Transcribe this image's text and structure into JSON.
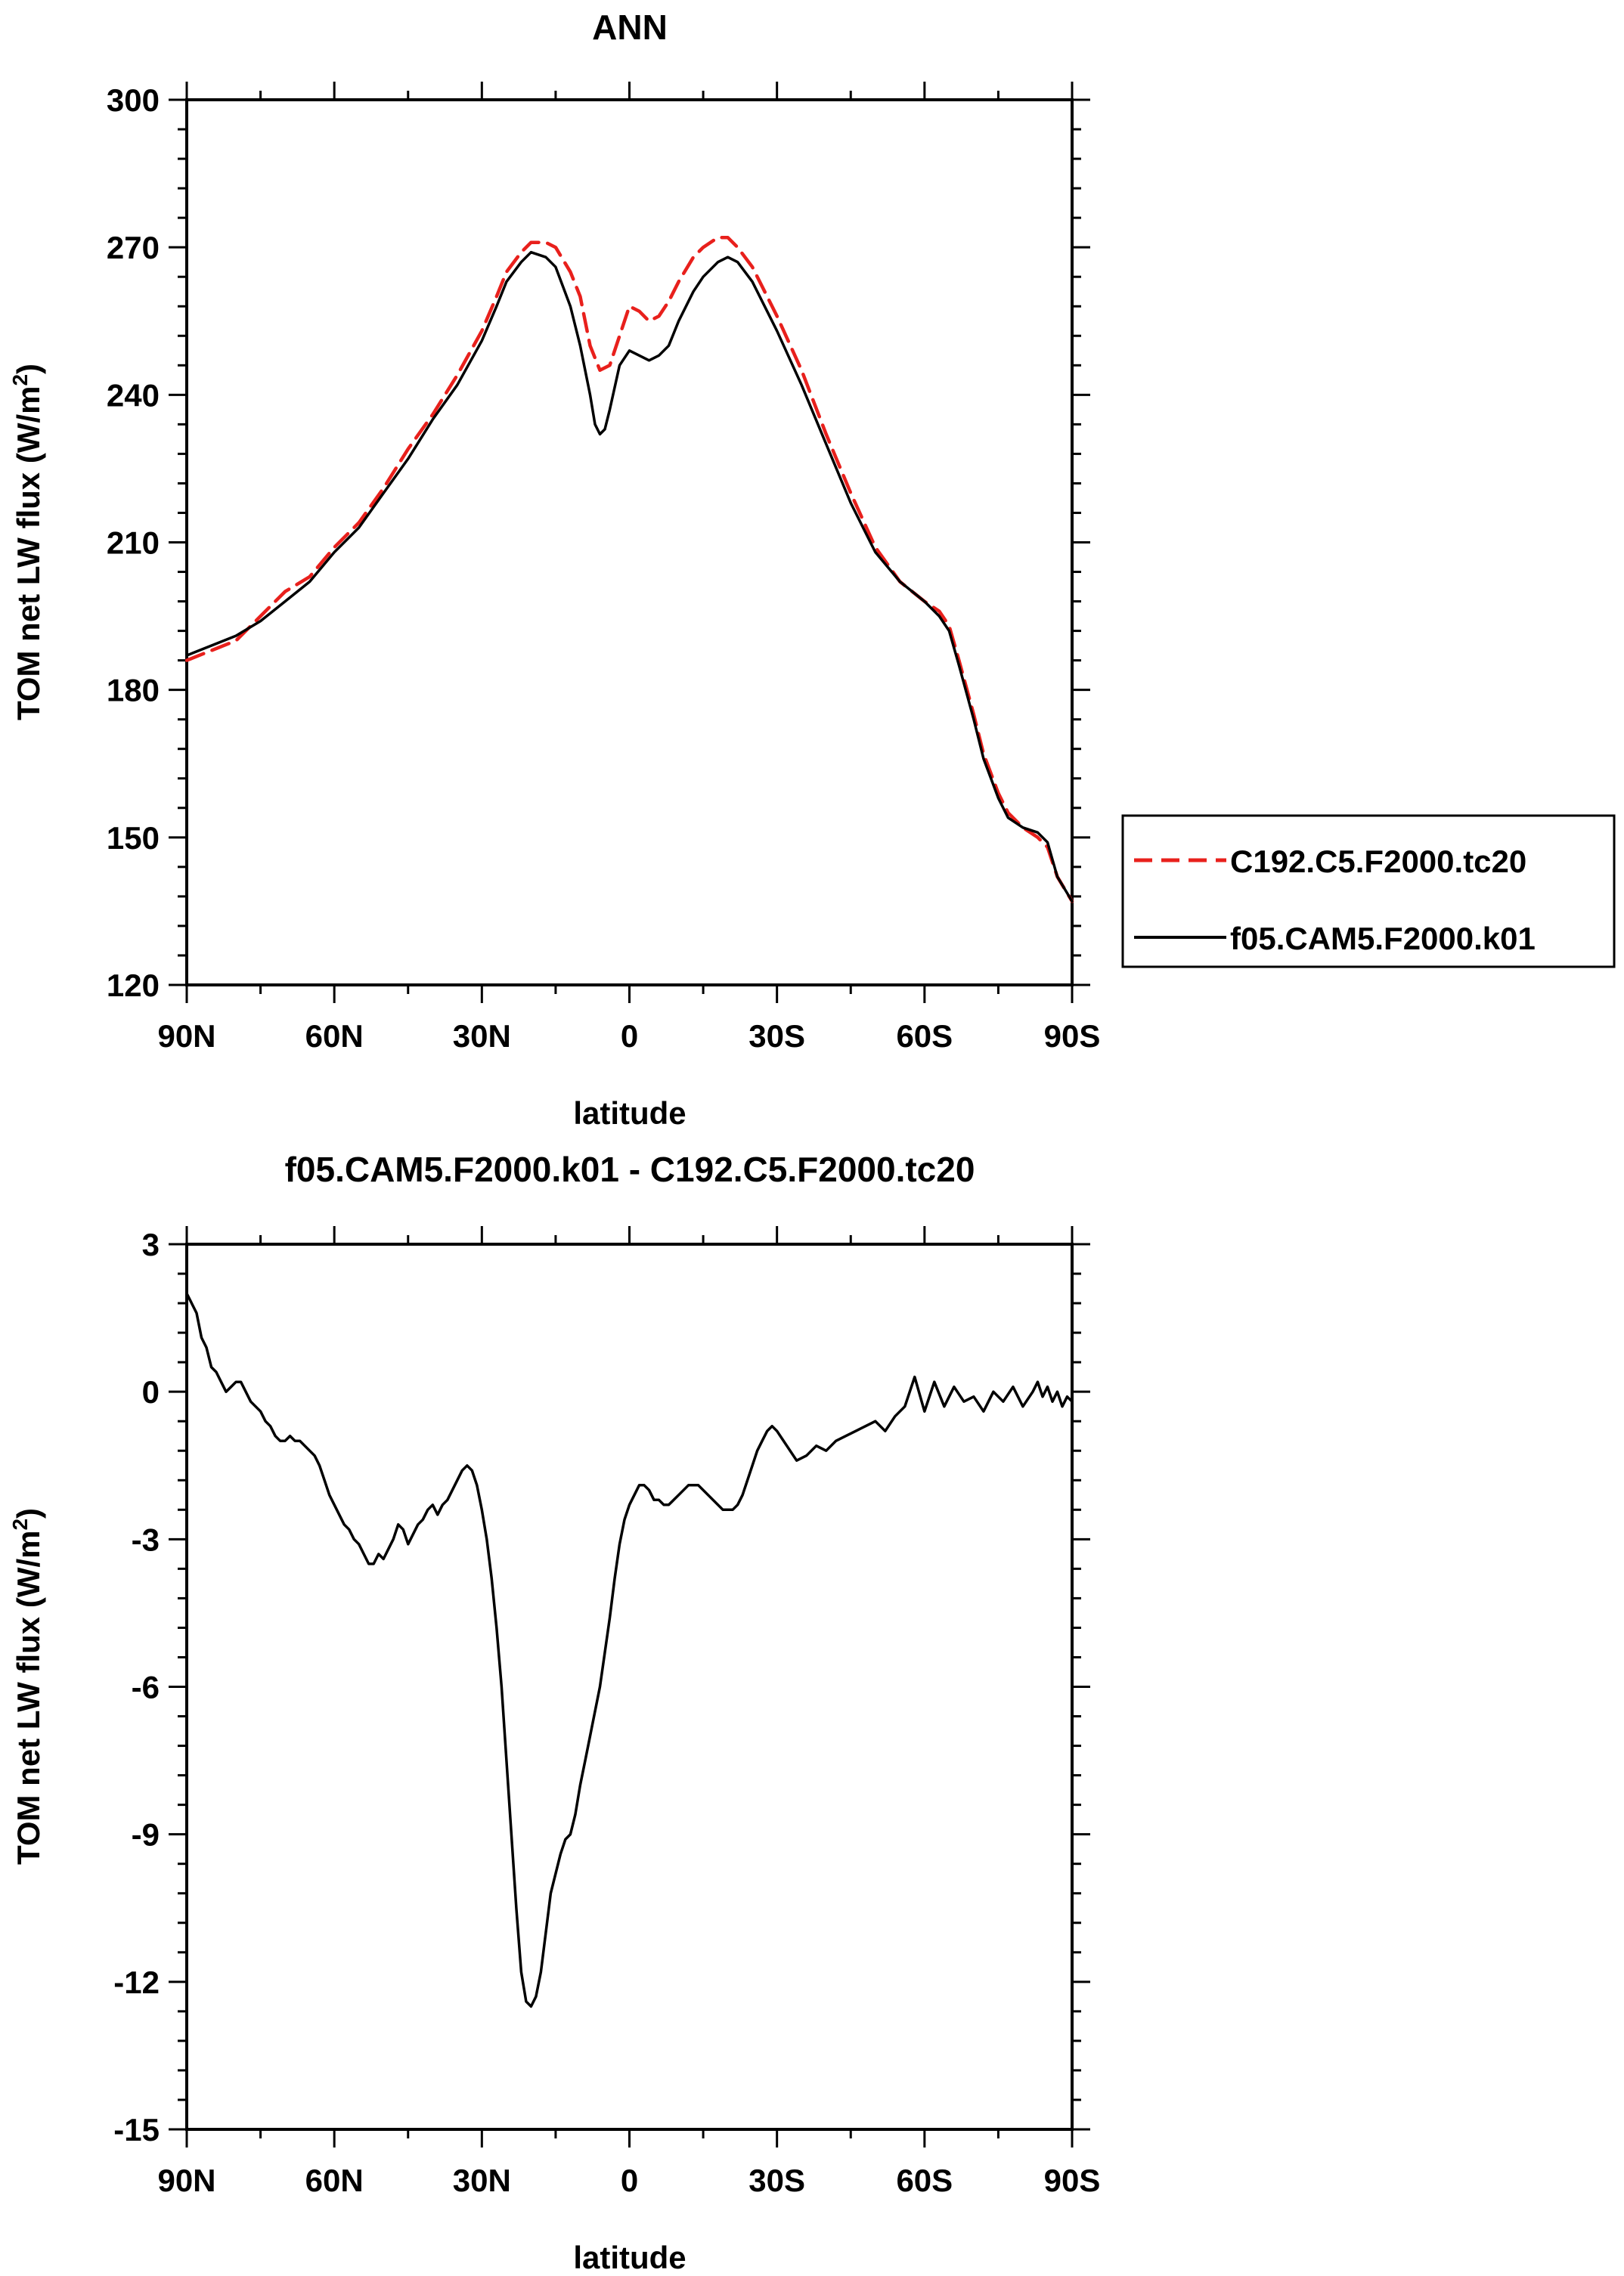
{
  "chart_data": [
    {
      "type": "line",
      "title": "ANN",
      "xlabel": "latitude",
      "ylabel": "TOM net LW flux (W/m",
      "ylabel_sup": "2",
      "ylabel_tail": ")",
      "xlim": [
        90,
        -90
      ],
      "ylim": [
        120,
        300
      ],
      "xticks": [
        90,
        60,
        30,
        0,
        -30,
        -60,
        -90
      ],
      "xtick_labels": [
        "90N",
        "60N",
        "30N",
        "0",
        "30S",
        "60S",
        "90S"
      ],
      "yticks": [
        120,
        150,
        180,
        210,
        240,
        270,
        300
      ],
      "ytick_labels": [
        "120",
        "150",
        "180",
        "210",
        "240",
        "270",
        "300"
      ],
      "grid": false,
      "legend": "right",
      "series": [
        {
          "name": "C192.C5.F2000.tc20",
          "color": "#e8201c",
          "dash": "dashed",
          "x": [
            90,
            85,
            80,
            75,
            70,
            65,
            60,
            55,
            50,
            45,
            40,
            35,
            30,
            27,
            25,
            22,
            20,
            17,
            15,
            12,
            10,
            8,
            6,
            4,
            2,
            0,
            -2,
            -4,
            -6,
            -8,
            -10,
            -13,
            -15,
            -18,
            -20,
            -22,
            -25,
            -30,
            -35,
            -40,
            -45,
            -50,
            -55,
            -60,
            -63,
            -65,
            -67,
            -70,
            -72,
            -75,
            -77,
            -80,
            -83,
            -85,
            -87,
            -90
          ],
          "values": [
            186,
            188,
            190,
            195,
            200,
            203,
            209,
            214,
            221,
            229,
            236,
            244,
            253,
            260,
            265,
            269,
            271,
            271,
            270,
            265,
            260,
            250,
            245,
            246,
            252,
            258,
            257,
            255,
            256,
            259,
            263,
            268,
            270,
            272,
            272,
            270,
            266,
            256,
            245,
            232,
            220,
            209,
            202,
            198,
            196,
            193,
            186,
            175,
            167,
            159,
            155,
            152,
            150,
            148,
            142,
            137
          ]
        },
        {
          "name": "f05.CAM5.F2000.k01",
          "color": "#000000",
          "dash": "solid",
          "x": [
            90,
            85,
            80,
            75,
            70,
            65,
            60,
            55,
            50,
            45,
            40,
            35,
            30,
            27,
            25,
            22,
            20,
            17,
            15,
            12,
            10,
            8,
            7,
            6,
            5,
            4,
            2,
            0,
            -2,
            -4,
            -6,
            -8,
            -10,
            -13,
            -15,
            -18,
            -20,
            -22,
            -25,
            -30,
            -35,
            -40,
            -45,
            -50,
            -55,
            -60,
            -63,
            -65,
            -67,
            -70,
            -72,
            -75,
            -77,
            -80,
            -83,
            -85,
            -87,
            -90
          ],
          "values": [
            187,
            189,
            191,
            194,
            198,
            202,
            208,
            213,
            220,
            227,
            235,
            242,
            251,
            258,
            263,
            267,
            269,
            268,
            266,
            258,
            250,
            240,
            234,
            232,
            233,
            237,
            246,
            249,
            248,
            247,
            248,
            250,
            255,
            261,
            264,
            267,
            268,
            267,
            263,
            253,
            242,
            230,
            218,
            208,
            202,
            198,
            195,
            192,
            185,
            174,
            166,
            158,
            154,
            152,
            151,
            149,
            142,
            137
          ]
        }
      ]
    },
    {
      "type": "line",
      "title": "f05.CAM5.F2000.k01 - C192.C5.F2000.tc20",
      "xlabel": "latitude",
      "ylabel": "TOM net LW flux (W/m",
      "ylabel_sup": "2",
      "ylabel_tail": ")",
      "xlim": [
        90,
        -90
      ],
      "ylim": [
        -15,
        3
      ],
      "xticks": [
        90,
        60,
        30,
        0,
        -30,
        -60,
        -90
      ],
      "xtick_labels": [
        "90N",
        "60N",
        "30N",
        "0",
        "30S",
        "60S",
        "90S"
      ],
      "yticks": [
        -15,
        -12,
        -9,
        -6,
        -3,
        0,
        3
      ],
      "ytick_labels": [
        "-15",
        "-12",
        "-9",
        "-6",
        "-3",
        "0",
        "3"
      ],
      "grid": false,
      "series": [
        {
          "color": "#000000",
          "dash": "solid",
          "x": [
            90,
            89,
            88,
            87,
            86,
            85,
            84,
            83,
            82,
            81,
            80,
            79,
            78,
            77,
            76,
            75,
            74,
            73,
            72,
            71,
            70,
            69,
            68,
            67,
            66,
            65,
            64,
            63,
            62,
            61,
            60,
            59,
            58,
            57,
            56,
            55,
            54,
            53,
            52,
            51,
            50,
            49,
            48,
            47,
            46,
            45,
            44,
            43,
            42,
            41,
            40,
            39,
            38,
            37,
            36,
            35,
            34,
            33,
            32,
            31,
            30,
            29,
            28,
            27,
            26,
            25,
            24,
            23,
            22,
            21,
            20,
            19,
            18,
            17,
            16,
            15,
            14,
            13,
            12,
            11,
            10,
            9,
            8,
            7,
            6,
            5,
            4,
            3,
            2,
            1,
            0,
            -1,
            -2,
            -3,
            -4,
            -5,
            -6,
            -7,
            -8,
            -9,
            -10,
            -11,
            -12,
            -13,
            -14,
            -15,
            -16,
            -17,
            -18,
            -19,
            -20,
            -21,
            -22,
            -23,
            -24,
            -25,
            -26,
            -27,
            -28,
            -29,
            -30,
            -32,
            -34,
            -36,
            -38,
            -40,
            -42,
            -44,
            -46,
            -48,
            -50,
            -52,
            -54,
            -56,
            -58,
            -60,
            -62,
            -64,
            -66,
            -68,
            -70,
            -72,
            -74,
            -76,
            -78,
            -80,
            -82,
            -83,
            -84,
            -85,
            -86,
            -87,
            -88,
            -89,
            -90
          ],
          "values": [
            2.0,
            1.8,
            1.6,
            1.1,
            0.9,
            0.5,
            0.4,
            0.2,
            0.0,
            0.1,
            0.2,
            0.2,
            0.0,
            -0.2,
            -0.3,
            -0.4,
            -0.6,
            -0.7,
            -0.9,
            -1.0,
            -1.0,
            -0.9,
            -1.0,
            -1.0,
            -1.1,
            -1.2,
            -1.3,
            -1.5,
            -1.8,
            -2.1,
            -2.3,
            -2.5,
            -2.7,
            -2.8,
            -3.0,
            -3.1,
            -3.3,
            -3.5,
            -3.5,
            -3.3,
            -3.4,
            -3.2,
            -3.0,
            -2.7,
            -2.8,
            -3.1,
            -2.9,
            -2.7,
            -2.6,
            -2.4,
            -2.3,
            -2.5,
            -2.3,
            -2.2,
            -2.0,
            -1.8,
            -1.6,
            -1.5,
            -1.6,
            -1.9,
            -2.4,
            -3.0,
            -3.8,
            -4.8,
            -6.0,
            -7.5,
            -9.0,
            -10.5,
            -11.8,
            -12.4,
            -12.5,
            -12.3,
            -11.8,
            -11.0,
            -10.2,
            -9.8,
            -9.4,
            -9.1,
            -9.0,
            -8.6,
            -8.0,
            -7.5,
            -7.0,
            -6.5,
            -6.0,
            -5.3,
            -4.6,
            -3.8,
            -3.1,
            -2.6,
            -2.3,
            -2.1,
            -1.9,
            -1.9,
            -2.0,
            -2.2,
            -2.2,
            -2.3,
            -2.3,
            -2.2,
            -2.1,
            -2.0,
            -1.9,
            -1.9,
            -1.9,
            -2.0,
            -2.1,
            -2.2,
            -2.3,
            -2.4,
            -2.4,
            -2.4,
            -2.3,
            -2.1,
            -1.8,
            -1.5,
            -1.2,
            -1.0,
            -0.8,
            -0.7,
            -0.8,
            -1.1,
            -1.4,
            -1.3,
            -1.1,
            -1.2,
            -1.0,
            -0.9,
            -0.8,
            -0.7,
            -0.6,
            -0.8,
            -0.5,
            -0.3,
            0.3,
            -0.4,
            0.2,
            -0.3,
            0.1,
            -0.2,
            -0.1,
            -0.4,
            0.0,
            -0.2,
            0.1,
            -0.3,
            0.0,
            0.2,
            -0.1,
            0.1,
            -0.2,
            0.0,
            -0.3,
            -0.1,
            -0.2
          ]
        }
      ]
    }
  ]
}
